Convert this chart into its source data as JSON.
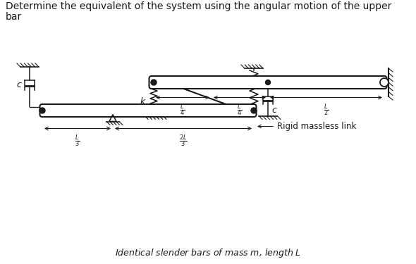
{
  "title_line1": "Determine the equivalent of the system using the angular motion of the upper",
  "title_line2": "bar",
  "caption": "Identical slender bars of mass $m$, length $L$",
  "line_color": "#1a1a1a",
  "bg_color": "#ffffff"
}
